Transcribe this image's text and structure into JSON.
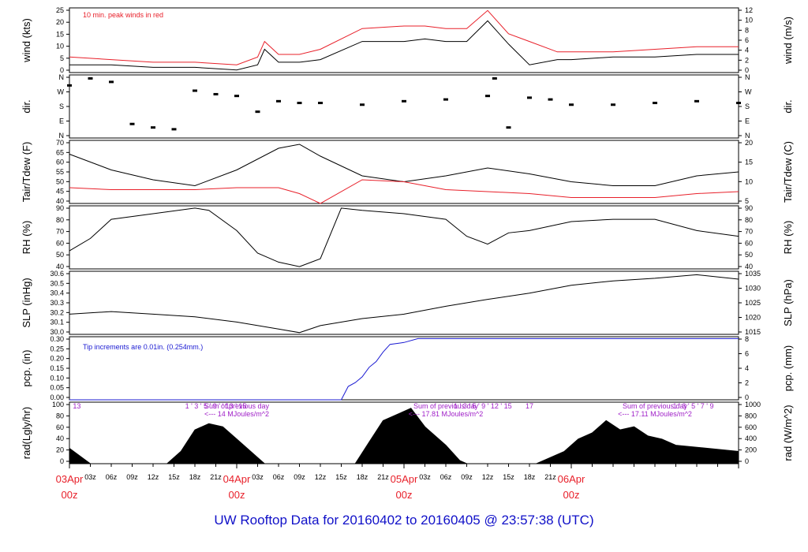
{
  "title": "UW Rooftop Data for 20160402  to  20160405 @ 23:57:38  (UTC)",
  "colors": {
    "red": "#e8202a",
    "blue": "#1a1ad2",
    "purple": "#a020c8",
    "black": "#000000"
  },
  "chart_data": [
    {
      "id": "wind",
      "type": "line",
      "ylabel_left": "wind (kts)",
      "ylabel_right": "wind (m/s)",
      "ylim": [
        0,
        25
      ],
      "yticks_left": [
        "0",
        "5",
        "10",
        "15",
        "20",
        "25"
      ],
      "yticks_right": [
        "0",
        "2",
        "4",
        "6",
        "8",
        "10",
        "12"
      ],
      "annotation": "10 min. peak winds in red",
      "x_hours": [
        0,
        6,
        12,
        18,
        24,
        27,
        28,
        30,
        33,
        36,
        42,
        48,
        51,
        54,
        57,
        60,
        63,
        66,
        70,
        72,
        78,
        84,
        90,
        96
      ],
      "series": [
        {
          "values": [
            3,
            3,
            2,
            2,
            1,
            3,
            9,
            4,
            4,
            5,
            12,
            12,
            13,
            12,
            12,
            20,
            11,
            3,
            5,
            5,
            6,
            6,
            7,
            7
          ]
        },
        {
          "color": "red",
          "values": [
            6,
            5,
            4,
            4,
            3,
            6,
            12,
            7,
            7,
            9,
            17,
            18,
            18,
            17,
            17,
            24,
            15,
            12,
            8,
            8,
            8,
            9,
            10,
            10
          ]
        }
      ]
    },
    {
      "id": "dir",
      "type": "scatter",
      "ylabel_left": "dir.",
      "ylabel_right": "dir.",
      "ylim": [
        0,
        360
      ],
      "yticks_left": [
        "N",
        "E",
        "S",
        "W",
        "N"
      ],
      "yticks_right": [
        "N",
        "E",
        "S",
        "W",
        "N"
      ],
      "x_hours": [
        0,
        3,
        6,
        9,
        12,
        15,
        18,
        21,
        24,
        27,
        30,
        33,
        36,
        42,
        48,
        54,
        60,
        61,
        63,
        66,
        69,
        72,
        78,
        84,
        90,
        96
      ],
      "values": [
        300,
        340,
        320,
        80,
        60,
        50,
        270,
        250,
        240,
        150,
        210,
        200,
        200,
        190,
        210,
        220,
        240,
        340,
        60,
        230,
        220,
        190,
        190,
        200,
        210,
        200
      ]
    },
    {
      "id": "temp",
      "type": "line",
      "ylabel_left": "Tair/Tdew (F)",
      "ylabel_right": "Tair/Tdew (C)",
      "ylim": [
        38,
        70
      ],
      "yticks_left": [
        "40",
        "45",
        "50",
        "55",
        "60",
        "65",
        "70"
      ],
      "yticks_right": [
        "5",
        "10",
        "15",
        "20"
      ],
      "x_hours": [
        0,
        6,
        12,
        18,
        24,
        30,
        33,
        36,
        42,
        48,
        54,
        60,
        66,
        72,
        78,
        84,
        90,
        96
      ],
      "series": [
        {
          "values": [
            63,
            55,
            50,
            47,
            55,
            66,
            68,
            62,
            52,
            49,
            52,
            56,
            53,
            49,
            47,
            47,
            52,
            54
          ]
        },
        {
          "color": "red",
          "values": [
            46,
            45,
            45,
            45,
            46,
            46,
            43,
            38,
            50,
            49,
            45,
            44,
            43,
            41,
            41,
            41,
            43,
            44
          ]
        }
      ]
    },
    {
      "id": "rh",
      "type": "line",
      "ylabel_left": "RH (%)",
      "ylabel_right": "RH (%)",
      "ylim": [
        36,
        92
      ],
      "yticks_left": [
        "40",
        "50",
        "60",
        "70",
        "80",
        "90"
      ],
      "yticks_right": [
        "40",
        "50",
        "60",
        "70",
        "80",
        "90"
      ],
      "x_hours": [
        0,
        3,
        6,
        12,
        18,
        20,
        24,
        27,
        30,
        33,
        36,
        39,
        42,
        48,
        54,
        57,
        60,
        63,
        66,
        72,
        78,
        84,
        90,
        96
      ],
      "values": [
        52,
        63,
        80,
        85,
        90,
        88,
        70,
        50,
        42,
        38,
        45,
        90,
        88,
        85,
        80,
        65,
        58,
        68,
        70,
        78,
        80,
        80,
        70,
        65
      ]
    },
    {
      "id": "slp",
      "type": "line",
      "ylabel_left": "SLP (inHg)",
      "ylabel_right": "SLP (hPa)",
      "ylim": [
        29.94,
        30.66
      ],
      "yticks_left": [
        "30.0",
        "30.1",
        "30.2",
        "30.3",
        "30.4",
        "30.5",
        "30.6"
      ],
      "yticks_right": [
        "1015",
        "1020",
        "1025",
        "1030",
        "1035"
      ],
      "x_hours": [
        0,
        6,
        12,
        18,
        24,
        30,
        33,
        36,
        42,
        48,
        54,
        60,
        66,
        72,
        78,
        84,
        90,
        96
      ],
      "values": [
        30.17,
        30.2,
        30.17,
        30.14,
        30.08,
        30.0,
        29.96,
        30.04,
        30.12,
        30.17,
        30.26,
        30.34,
        30.41,
        30.5,
        30.55,
        30.58,
        30.62,
        30.57
      ]
    },
    {
      "id": "pcp",
      "type": "line",
      "ylabel_left": "pcp. (in)",
      "ylabel_right": "pcp. (mm)",
      "ylim": [
        0,
        0.33
      ],
      "yticks_left": [
        "0.00",
        "0.05",
        "0.10",
        "0.15",
        "0.20",
        "0.25",
        "0.30"
      ],
      "yticks_right": [
        "0",
        "2",
        "4",
        "6",
        "8"
      ],
      "annotation": "Tip increments are 0.01in. (0.254mm.)",
      "x_hours": [
        0,
        39,
        40,
        41,
        42,
        43,
        44,
        45,
        46,
        48,
        50,
        96
      ],
      "values": [
        0,
        0,
        0.07,
        0.09,
        0.12,
        0.17,
        0.2,
        0.25,
        0.29,
        0.3,
        0.32,
        0.32
      ]
    },
    {
      "id": "rad",
      "type": "area",
      "ylabel_left": "rad(Lgly/hr)",
      "ylabel_right": "rad (W/m^2)",
      "ylim": [
        0,
        100
      ],
      "yticks_left": [
        "0",
        "20",
        "40",
        "60",
        "80",
        "100"
      ],
      "yticks_right": [
        "0",
        "200",
        "400",
        "600",
        "800",
        "1000"
      ],
      "annotations": [
        {
          "x": 0.5,
          "text": "13"
        },
        {
          "x": 24,
          "text": "Sum of previous day"
        },
        {
          "x": 24,
          "text": "<--- 14 MJoules/m^2"
        },
        {
          "x": 54,
          "text": "Sum of previous day"
        },
        {
          "x": 54,
          "text": "<--- 17.81 MJoules/m^2"
        },
        {
          "x": 84,
          "text": "Sum of previous day"
        },
        {
          "x": 84,
          "text": "<--- 17.11 MJoules/m^2"
        },
        {
          "x": 21,
          "text": "1  '  3  '  5  '  9  '  '  13  '  15"
        },
        {
          "x": 59.3,
          "text": "1  '  3  '  5  '  9  '  12  '  15"
        },
        {
          "x": 66,
          "text": "17"
        },
        {
          "x": 89.5,
          "text": "1  '  3  '  5  '  7  '  9"
        }
      ],
      "x_hours": [
        0,
        3,
        4,
        14,
        16,
        18,
        20,
        22,
        24,
        27,
        28,
        41,
        43,
        45,
        47,
        49,
        51,
        54,
        56,
        57,
        66,
        67,
        69,
        71,
        73,
        75,
        77,
        79,
        81,
        83,
        85,
        87,
        96
      ],
      "values": [
        25,
        0,
        0,
        0,
        20,
        55,
        65,
        60,
        40,
        10,
        0,
        0,
        35,
        70,
        80,
        90,
        60,
        30,
        5,
        0,
        0,
        0,
        10,
        20,
        40,
        50,
        70,
        55,
        60,
        45,
        40,
        30,
        20
      ]
    }
  ],
  "x_axis": {
    "ticks": [
      "03z",
      "06z",
      "09z",
      "12z",
      "15z",
      "18z",
      "21z",
      "03z",
      "06z",
      "09z",
      "12z",
      "15z",
      "18z",
      "21z",
      "03z",
      "06z",
      "09z",
      "12z",
      "15z",
      "18z",
      "21z"
    ],
    "major": [
      {
        "top": "03Apr",
        "bottom": "00z"
      },
      {
        "top": "04Apr",
        "bottom": "00z"
      },
      {
        "top": "05Apr",
        "bottom": "00z"
      },
      {
        "top": "06Apr",
        "bottom": "00z"
      }
    ]
  }
}
